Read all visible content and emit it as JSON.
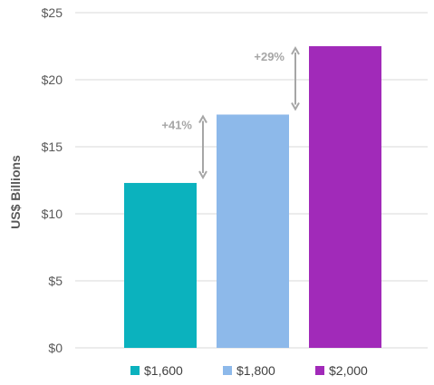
{
  "chart_data": {
    "type": "bar",
    "title": "",
    "xlabel": "",
    "ylabel": "US$ Billions",
    "ylim": [
      0,
      25
    ],
    "yticks": [
      {
        "value": 0,
        "label": "$0"
      },
      {
        "value": 5,
        "label": "$5"
      },
      {
        "value": 10,
        "label": "$10"
      },
      {
        "value": 15,
        "label": "$15"
      },
      {
        "value": 20,
        "label": "$20"
      },
      {
        "value": 25,
        "label": "$25"
      }
    ],
    "grid": true,
    "legend_position": "bottom",
    "categories": [
      "$1,600",
      "$1,800",
      "$2,000"
    ],
    "values": [
      12.3,
      17.4,
      22.5
    ],
    "colors": [
      "#0bb2be",
      "#8db9ea",
      "#a12ab9"
    ],
    "annotations": [
      {
        "label": "+41%",
        "from_value": 12.3,
        "to_value": 17.4,
        "between": [
          0,
          1
        ]
      },
      {
        "label": "+29%",
        "from_value": 17.4,
        "to_value": 22.5,
        "between": [
          1,
          2
        ]
      }
    ],
    "annotation_color": "#a6a6a6",
    "grid_color": "#d9d9d9"
  }
}
